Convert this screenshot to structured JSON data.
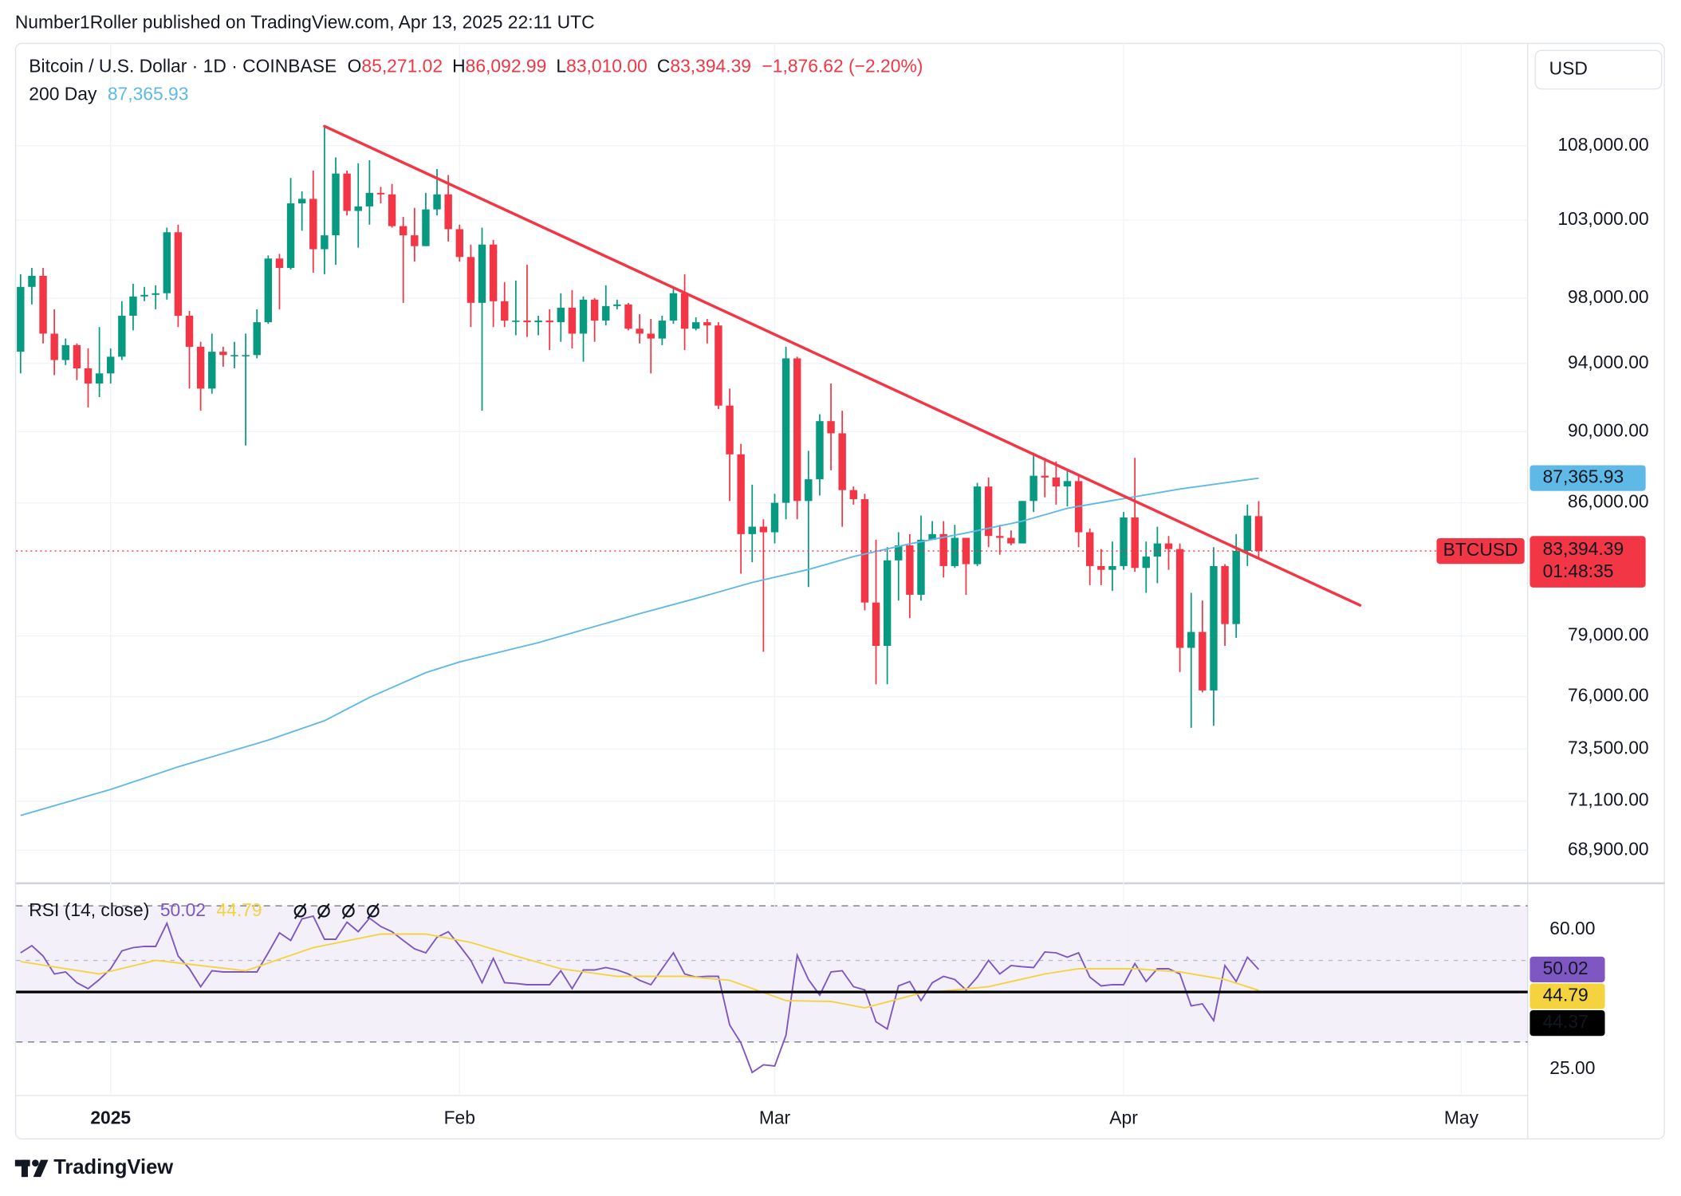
{
  "header": "Number1Roller published on TradingView.com, Apr 13, 2025 22:11 UTC",
  "brand": "TradingView",
  "chart_data": [
    {
      "type": "candlestick",
      "title": "Bitcoin / U.S. Dollar · 1D · COINBASE",
      "ohlc_legend": [
        {
          "key": "O",
          "label": "85,271.02"
        },
        {
          "key": "H",
          "label": "86,092.99"
        },
        {
          "key": "L",
          "label": "83,010.00"
        },
        {
          "key": "C",
          "label": "83,394.39"
        }
      ],
      "change_label": "−1,876.62 (−2.20%)",
      "symbol": "BTCUSD",
      "last_label": "83,394.39",
      "countdown": "01:48:35",
      "currency": "USD",
      "x": [
        -8,
        -7,
        -6,
        -5,
        -4,
        -3,
        -2,
        -1,
        0,
        1,
        2,
        3,
        4,
        5,
        6,
        7,
        8,
        9,
        10,
        11,
        12,
        13,
        14,
        15,
        16,
        17,
        18,
        19,
        20,
        21,
        22,
        23,
        24,
        25,
        26,
        27,
        28,
        29,
        30,
        31,
        32,
        33,
        34,
        35,
        36,
        37,
        38,
        39,
        40,
        41,
        42,
        43,
        44,
        45,
        46,
        47,
        48,
        49,
        50,
        51,
        52,
        53,
        54,
        55,
        56,
        57,
        58,
        59,
        60,
        61,
        62,
        63,
        64,
        65,
        66,
        67,
        68,
        69,
        70,
        71,
        72,
        73,
        74,
        75,
        76,
        77,
        78,
        79,
        80,
        81,
        82,
        83,
        84,
        85,
        86,
        87,
        88,
        89,
        90,
        91,
        92,
        93,
        94,
        95,
        96,
        97,
        98,
        99,
        100,
        101,
        102
      ],
      "open": [
        94700,
        98700,
        99400,
        95800,
        94200,
        95100,
        93700,
        92800,
        93400,
        94400,
        96900,
        98100,
        98200,
        98300,
        102200,
        96900,
        95000,
        92500,
        94700,
        94500,
        94500,
        94500,
        96500,
        100500,
        99900,
        104100,
        104400,
        101100,
        102000,
        106100,
        103600,
        103900,
        104800,
        104700,
        102600,
        102000,
        101300,
        103700,
        104700,
        102400,
        100600,
        97700,
        101400,
        97800,
        96600,
        96600,
        96500,
        96600,
        96500,
        97400,
        95800,
        97900,
        96600,
        97500,
        97600,
        96100,
        95800,
        95500,
        96600,
        98300,
        96100,
        96500,
        96300,
        91500,
        88700,
        84300,
        84700,
        84400,
        86000,
        94300,
        86100,
        87300,
        90600,
        89900,
        86700,
        86200,
        80700,
        78500,
        82900,
        83700,
        81100,
        84000,
        84300,
        82600,
        84100,
        82700,
        86900,
        84200,
        84100,
        83800,
        86100,
        87500,
        87400,
        86900,
        87200,
        84400,
        82600,
        82400,
        82600,
        85200,
        82500,
        83100,
        83800,
        83500,
        78400,
        79200,
        76300,
        82600,
        79600,
        83400,
        85271.02
      ],
      "high": [
        99500,
        99900,
        99900,
        97300,
        95500,
        95200,
        94900,
        96200,
        94900,
        97800,
        98900,
        98700,
        98800,
        102500,
        102700,
        97200,
        95300,
        95800,
        95000,
        95300,
        95800,
        97300,
        100700,
        100800,
        105800,
        104900,
        106300,
        109350,
        107200,
        106300,
        106800,
        107000,
        105200,
        105400,
        103200,
        103800,
        104800,
        106400,
        106000,
        102700,
        101400,
        102500,
        101700,
        99000,
        99100,
        100100,
        96900,
        97300,
        98300,
        98500,
        98100,
        98000,
        98800,
        97900,
        97700,
        97000,
        96700,
        96900,
        98700,
        99500,
        96800,
        96700,
        96500,
        92500,
        89300,
        87000,
        85100,
        86500,
        95000,
        94400,
        88900,
        91000,
        92800,
        91200,
        86900,
        86500,
        84000,
        83600,
        84400,
        84300,
        85300,
        85000,
        85000,
        84800,
        84100,
        87100,
        87400,
        84800,
        84500,
        86100,
        88800,
        88500,
        88300,
        87800,
        87500,
        84600,
        83500,
        83900,
        85500,
        88500,
        83900,
        84700,
        84200,
        83800,
        81200,
        80800,
        83600,
        82700,
        84300,
        85900,
        86092.99
      ],
      "low": [
        93400,
        97600,
        95200,
        93300,
        93900,
        93000,
        91400,
        92000,
        92800,
        94200,
        96000,
        97800,
        97300,
        97900,
        96200,
        92500,
        91200,
        92200,
        93800,
        93700,
        89200,
        94300,
        96400,
        97300,
        99800,
        102300,
        99600,
        99500,
        100100,
        103300,
        101200,
        102700,
        104100,
        102500,
        97700,
        100300,
        101300,
        103300,
        101600,
        100300,
        96200,
        91200,
        96200,
        96200,
        95700,
        95600,
        95700,
        94800,
        95300,
        94900,
        94100,
        95300,
        96300,
        97300,
        96000,
        95200,
        93400,
        95100,
        96400,
        94800,
        96000,
        95200,
        91300,
        86100,
        82200,
        82800,
        78200,
        83800,
        85100,
        85100,
        81500,
        86400,
        87800,
        84700,
        85900,
        80300,
        76600,
        76600,
        80800,
        79900,
        80800,
        84000,
        82000,
        82500,
        81100,
        82600,
        83600,
        83200,
        83700,
        83800,
        85500,
        86300,
        85900,
        85800,
        83600,
        81600,
        81600,
        81300,
        82400,
        82300,
        81200,
        81700,
        82400,
        77200,
        74500,
        76200,
        74600,
        78500,
        78900,
        82600,
        83010
      ],
      "close": [
        98700,
        99400,
        95800,
        94200,
        95100,
        93700,
        92800,
        93400,
        94400,
        96900,
        98100,
        98200,
        98300,
        102200,
        96900,
        95000,
        92500,
        94700,
        94500,
        94500,
        94500,
        96500,
        100500,
        99900,
        104100,
        104400,
        101100,
        102000,
        106100,
        103600,
        103900,
        104800,
        104700,
        102600,
        102000,
        101300,
        103700,
        104700,
        102400,
        100600,
        97700,
        101400,
        97800,
        96600,
        96600,
        96500,
        96600,
        96500,
        97400,
        95800,
        97900,
        96600,
        97500,
        97600,
        96100,
        95800,
        95500,
        96600,
        98300,
        96100,
        96500,
        96300,
        91500,
        88700,
        84300,
        84700,
        84400,
        86000,
        94300,
        86100,
        87300,
        90600,
        89900,
        86700,
        86200,
        80700,
        78500,
        82900,
        83700,
        81100,
        84000,
        84300,
        82600,
        84100,
        82700,
        86900,
        84200,
        84100,
        83800,
        86100,
        87500,
        87400,
        86900,
        87200,
        84400,
        82600,
        82400,
        82600,
        85200,
        82500,
        83100,
        83800,
        83500,
        78400,
        79200,
        76300,
        82600,
        79600,
        83400,
        85300,
        83394.39
      ],
      "up_color": "#089981",
      "down_color": "#f23645",
      "series": [
        {
          "name": "200 Day",
          "color": "#5fb9e6",
          "x": [
            -8,
            0,
            6,
            14,
            19,
            23,
            28,
            31,
            38,
            47,
            52,
            57,
            62,
            66,
            71,
            76,
            81,
            85,
            90,
            95,
            102
          ],
          "values": [
            70450,
            71630,
            72670,
            73920,
            74840,
            75960,
            77170,
            77700,
            78660,
            80130,
            80910,
            81740,
            82420,
            83100,
            83780,
            84360,
            85000,
            85700,
            86230,
            86760,
            87365.93
          ],
          "value_label": "87,365.93"
        }
      ],
      "trendline": {
        "x": [
          19,
          111
        ],
        "values": [
          109350,
          80560
        ],
        "color": "#f23645"
      },
      "xlim": [
        -8.4,
        125.9
      ],
      "xticks": [
        {
          "value": 0,
          "label": "2025"
        },
        {
          "value": 31,
          "label": "Feb"
        },
        {
          "value": 59,
          "label": "Mar"
        },
        {
          "value": 90,
          "label": "Apr"
        },
        {
          "value": 120,
          "label": "May"
        }
      ],
      "ylim": [
        67560,
        115320
      ],
      "log_scale": true,
      "yticks": [
        {
          "value": 108000,
          "label": "108,000.00"
        },
        {
          "value": 103000,
          "label": "103,000.00"
        },
        {
          "value": 98000,
          "label": "98,000.00"
        },
        {
          "value": 94000,
          "label": "94,000.00"
        },
        {
          "value": 90000,
          "label": "90,000.00"
        },
        {
          "value": 86000,
          "label": "86,000.00"
        },
        {
          "value": 79000,
          "label": "79,000.00"
        },
        {
          "value": 76000,
          "label": "76,000.00"
        },
        {
          "value": 73500,
          "label": "73,500.00"
        },
        {
          "value": 71100,
          "label": "71,100.00"
        },
        {
          "value": 68900,
          "label": "68,900.00"
        }
      ],
      "grid": true
    },
    {
      "type": "line",
      "title": "RSI (14, close)",
      "x": [
        -8,
        -7,
        -6,
        -5,
        -4,
        -3,
        -2,
        -1,
        0,
        1,
        2,
        3,
        4,
        5,
        6,
        7,
        8,
        9,
        10,
        11,
        12,
        13,
        14,
        15,
        16,
        17,
        18,
        19,
        20,
        21,
        22,
        23,
        24,
        25,
        26,
        27,
        28,
        29,
        30,
        31,
        32,
        33,
        34,
        35,
        36,
        37,
        38,
        39,
        40,
        41,
        42,
        43,
        44,
        45,
        46,
        47,
        48,
        49,
        50,
        51,
        52,
        53,
        54,
        55,
        56,
        57,
        58,
        59,
        60,
        61,
        62,
        63,
        64,
        65,
        66,
        67,
        68,
        69,
        70,
        71,
        72,
        73,
        74,
        75,
        76,
        77,
        78,
        79,
        80,
        81,
        82,
        83,
        84,
        85,
        86,
        87,
        88,
        89,
        90,
        91,
        92,
        93,
        94,
        95,
        96,
        97,
        98,
        99,
        100,
        101,
        102
      ],
      "series": [
        {
          "color": "#7e57c2",
          "value_label": "50.02",
          "values": [
            54.2,
            56.0,
            53.4,
            48.9,
            49.4,
            46.7,
            45.2,
            47.5,
            50.2,
            54.7,
            55.5,
            55.8,
            55.8,
            61.6,
            53.4,
            50.2,
            45.7,
            49.7,
            49.4,
            49.4,
            49.4,
            49.4,
            54.2,
            59.2,
            57.3,
            62.7,
            63.4,
            57.6,
            57.6,
            61.9,
            59.5,
            62.9,
            60.8,
            59.5,
            57.3,
            55.2,
            54.2,
            58.1,
            59.5,
            56.0,
            52.3,
            46.7,
            52.8,
            46.7,
            46.5,
            46.2,
            46.2,
            46.2,
            49.7,
            45.2,
            49.9,
            49.9,
            50.5,
            49.9,
            48.9,
            47.3,
            46.2,
            50.2,
            54.2,
            48.9,
            48.1,
            48.3,
            48.3,
            36.1,
            31.6,
            24.2,
            26.1,
            25.8,
            33.5,
            53.6,
            47.5,
            43.6,
            49.4,
            49.7,
            45.7,
            44.9,
            36.9,
            35.1,
            45.9,
            47.0,
            42.2,
            46.7,
            48.3,
            47.5,
            44.9,
            48.1,
            52.3,
            48.9,
            51.0,
            50.7,
            50.5,
            54.4,
            54.2,
            53.1,
            54.2,
            48.1,
            45.9,
            46.2,
            46.2,
            51.5,
            47.0,
            50.2,
            50.2,
            48.9,
            40.9,
            41.4,
            37.2,
            51.0,
            47.0,
            53.1,
            50.02
          ]
        },
        {
          "color": "#f5d33f",
          "value_label": "44.79",
          "x": [
            -8,
            -1,
            4,
            12,
            18,
            24,
            28,
            32,
            36,
            40,
            45,
            51,
            55,
            60,
            64,
            67,
            72,
            78,
            83,
            86,
            91,
            95,
            99,
            102
          ],
          "values": [
            52.0,
            48.9,
            52.3,
            49.7,
            55.5,
            58.9,
            58.9,
            56.8,
            53.4,
            50.2,
            48.3,
            48.3,
            47.3,
            42.2,
            42.0,
            40.4,
            44.1,
            45.7,
            48.9,
            50.2,
            50.2,
            49.4,
            47.5,
            44.79
          ]
        }
      ],
      "hline": {
        "value": 44.37,
        "label": "44.37",
        "color": "#000000"
      },
      "ylim": [
        18.4,
        71.1
      ],
      "yticks": [
        {
          "value": 60,
          "label": "60.00"
        },
        {
          "value": 25,
          "label": "25.00"
        }
      ]
    }
  ]
}
